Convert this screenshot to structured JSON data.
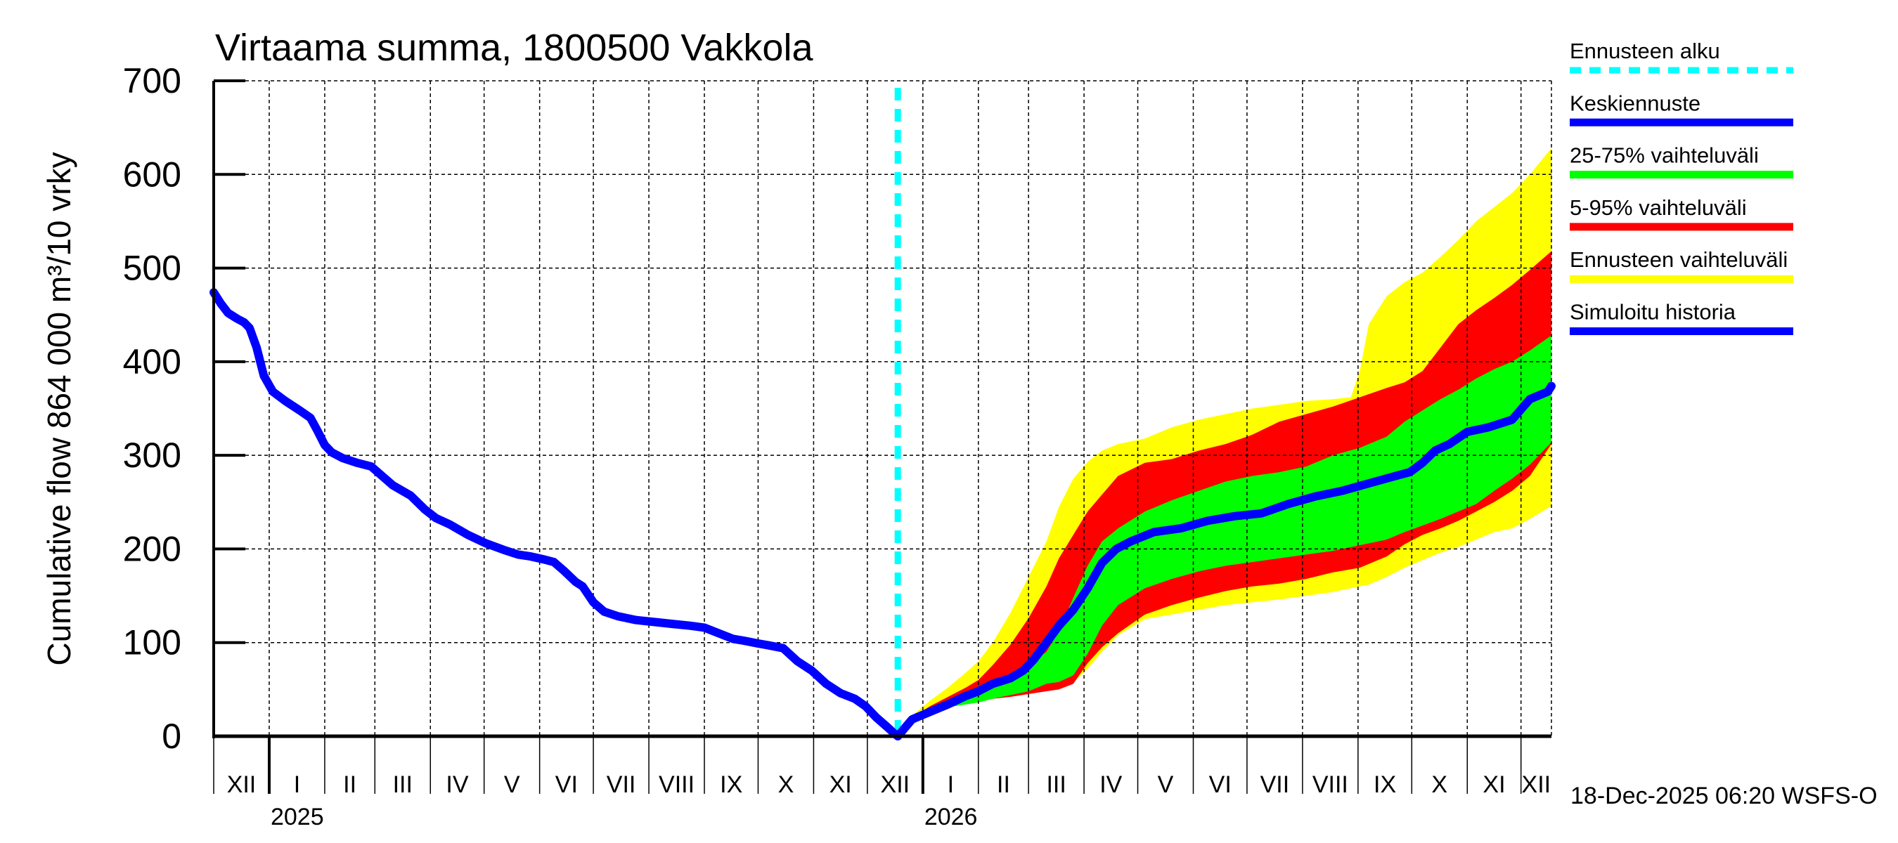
{
  "chart_data": {
    "type": "area",
    "title": "Virtaama summa, 1800500 Vakkola",
    "ylabel": "Cumulative flow    864 000 m³/10 vrky",
    "xlabel": "",
    "ylim": [
      0,
      700
    ],
    "yticks": [
      0,
      100,
      200,
      300,
      400,
      500,
      600,
      700
    ],
    "grid": true,
    "x_unit": "days since 2024-12-01",
    "xlim": [
      0,
      747
    ],
    "month_ticks": [
      {
        "day": 31,
        "label": "I"
      },
      {
        "day": 62,
        "label": "II"
      },
      {
        "day": 90,
        "label": "III"
      },
      {
        "day": 121,
        "label": "IV"
      },
      {
        "day": 151,
        "label": "V"
      },
      {
        "day": 182,
        "label": "VI"
      },
      {
        "day": 212,
        "label": "VII"
      },
      {
        "day": 243,
        "label": "VIII"
      },
      {
        "day": 274,
        "label": "IX"
      },
      {
        "day": 304,
        "label": "X"
      },
      {
        "day": 335,
        "label": "XI"
      },
      {
        "day": 365,
        "label": "XII"
      },
      {
        "day": 396,
        "label": "I"
      },
      {
        "day": 427,
        "label": "II"
      },
      {
        "day": 455,
        "label": "III"
      },
      {
        "day": 486,
        "label": "IV"
      },
      {
        "day": 516,
        "label": "V"
      },
      {
        "day": 547,
        "label": "VI"
      },
      {
        "day": 577,
        "label": "VII"
      },
      {
        "day": 608,
        "label": "VIII"
      },
      {
        "day": 639,
        "label": "IX"
      },
      {
        "day": 669,
        "label": "X"
      },
      {
        "day": 700,
        "label": "XI"
      },
      {
        "day": 730,
        "label": "XII"
      }
    ],
    "first_month_label": "XII",
    "year_ticks": [
      {
        "day": 31,
        "label": "2025"
      },
      {
        "day": 396,
        "label": "2026"
      }
    ],
    "forecast_start_day": 382,
    "legend": {
      "placement": "right",
      "entries": [
        {
          "label": "Ennusteen alku",
          "color": "#00ffff",
          "style": "dashed"
        },
        {
          "label": "Keskiennuste",
          "color": "#0000ff",
          "style": "solid"
        },
        {
          "label": "25-75% vaihteluväli",
          "color": "#00ff00",
          "style": "band"
        },
        {
          "label": "5-95% vaihteluväli",
          "color": "#ff0000",
          "style": "band"
        },
        {
          "label": "Ennusteen vaihteluväli",
          "color": "#ffff00",
          "style": "band"
        },
        {
          "label": "Simuloitu historia",
          "color": "#0000ff",
          "style": "solid"
        }
      ]
    },
    "series": [
      {
        "name": "Simuloitu historia",
        "color": "#0000ff",
        "x": [
          0,
          4,
          8,
          13,
          17,
          20,
          24,
          28,
          33,
          40,
          48,
          54,
          58,
          62,
          66,
          72,
          80,
          88,
          94,
          100,
          110,
          118,
          124,
          132,
          142,
          152,
          162,
          170,
          177,
          184,
          190,
          196,
          202,
          206,
          212,
          218,
          226,
          236,
          246,
          256,
          266,
          274,
          282,
          290,
          296,
          304,
          310,
          318,
          326,
          334,
          342,
          350,
          358,
          364,
          370,
          376,
          380,
          382
        ],
        "y": [
          474,
          462,
          452,
          446,
          442,
          436,
          415,
          385,
          368,
          358,
          348,
          340,
          326,
          311,
          303,
          297,
          292,
          288,
          278,
          268,
          257,
          242,
          233,
          226,
          215,
          206,
          199,
          194,
          192,
          189,
          186,
          176,
          165,
          160,
          143,
          133,
          128,
          124,
          122,
          120,
          118,
          116,
          110,
          104,
          102,
          99,
          97,
          94,
          80,
          70,
          56,
          46,
          40,
          32,
          20,
          10,
          3,
          0
        ]
      },
      {
        "name": "Keskiennuste",
        "color": "#0000ff",
        "x": [
          382,
          390,
          400,
          410,
          420,
          427,
          435,
          445,
          452,
          458,
          465,
          472,
          480,
          488,
          496,
          504,
          512,
          525,
          540,
          555,
          570,
          585,
          600,
          615,
          630,
          645,
          660,
          668,
          675,
          682,
          690,
          700,
          712,
          725,
          735,
          745,
          747
        ],
        "y": [
          0,
          18,
          26,
          34,
          43,
          48,
          56,
          62,
          70,
          82,
          100,
          118,
          135,
          158,
          185,
          200,
          208,
          218,
          222,
          230,
          235,
          238,
          248,
          256,
          262,
          270,
          278,
          282,
          292,
          305,
          312,
          325,
          330,
          338,
          360,
          368,
          374
        ]
      }
    ],
    "bands": [
      {
        "name": "Ennusteen vaihteluväli",
        "color": "#ffff00",
        "x": [
          390,
          400,
          410,
          420,
          427,
          435,
          445,
          455,
          465,
          472,
          480,
          488,
          496,
          505,
          520,
          535,
          550,
          565,
          580,
          595,
          610,
          625,
          635,
          640,
          645,
          655,
          665,
          675,
          685,
          695,
          705,
          715,
          725,
          735,
          747
        ],
        "upper": [
          22,
          38,
          52,
          68,
          80,
          100,
          132,
          170,
          208,
          245,
          275,
          293,
          305,
          312,
          318,
          330,
          338,
          344,
          350,
          354,
          358,
          360,
          362,
          390,
          440,
          470,
          485,
          495,
          512,
          530,
          550,
          565,
          580,
          600,
          628
        ],
        "lower": [
          20,
          28,
          32,
          36,
          39,
          42,
          44,
          46,
          50,
          52,
          57,
          72,
          90,
          108,
          125,
          130,
          135,
          140,
          143,
          146,
          150,
          154,
          158,
          160,
          162,
          170,
          180,
          188,
          196,
          202,
          210,
          218,
          222,
          232,
          246
        ]
      },
      {
        "name": "5-95% vaihteluväli",
        "color": "#ff0000",
        "x": [
          390,
          400,
          410,
          420,
          427,
          435,
          445,
          455,
          465,
          472,
          480,
          488,
          496,
          505,
          520,
          535,
          550,
          565,
          580,
          595,
          610,
          625,
          640,
          655,
          665,
          675,
          685,
          695,
          705,
          715,
          725,
          735,
          747
        ],
        "upper": [
          20,
          32,
          42,
          52,
          60,
          76,
          98,
          126,
          160,
          190,
          215,
          240,
          258,
          278,
          292,
          296,
          305,
          312,
          322,
          336,
          344,
          352,
          362,
          372,
          378,
          390,
          415,
          440,
          455,
          468,
          482,
          498,
          518
        ],
        "lower": [
          20,
          28,
          32,
          35,
          38,
          40,
          42,
          45,
          48,
          50,
          56,
          78,
          95,
          110,
          130,
          140,
          148,
          155,
          160,
          163,
          168,
          175,
          180,
          192,
          205,
          215,
          222,
          230,
          240,
          250,
          262,
          278,
          312
        ]
      },
      {
        "name": "25-75% vaihteluväli",
        "color": "#00ff00",
        "x": [
          390,
          400,
          410,
          420,
          427,
          435,
          445,
          455,
          465,
          472,
          480,
          488,
          496,
          505,
          520,
          535,
          550,
          565,
          580,
          595,
          610,
          625,
          640,
          655,
          665,
          675,
          685,
          695,
          705,
          715,
          725,
          735,
          747
        ],
        "upper": [
          20,
          28,
          36,
          45,
          50,
          58,
          66,
          76,
          90,
          112,
          148,
          182,
          208,
          222,
          240,
          252,
          262,
          272,
          278,
          282,
          288,
          300,
          308,
          320,
          336,
          348,
          360,
          370,
          382,
          392,
          400,
          412,
          428
        ],
        "lower": [
          20,
          26,
          31,
          34,
          36,
          40,
          44,
          48,
          56,
          58,
          65,
          88,
          118,
          140,
          158,
          168,
          176,
          182,
          186,
          190,
          194,
          198,
          204,
          210,
          218,
          225,
          232,
          240,
          248,
          262,
          275,
          290,
          314
        ]
      }
    ],
    "annotations": {
      "timestamp": "18-Dec-2025 06:20 WSFS-O"
    }
  }
}
